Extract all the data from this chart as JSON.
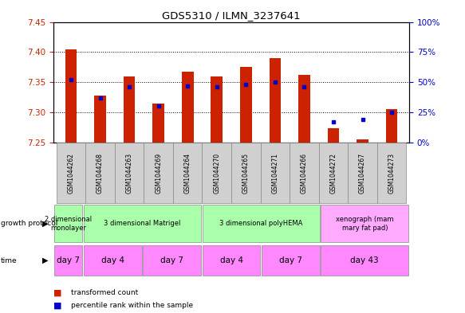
{
  "title": "GDS5310 / ILMN_3237641",
  "samples": [
    "GSM1044262",
    "GSM1044268",
    "GSM1044263",
    "GSM1044269",
    "GSM1044264",
    "GSM1044270",
    "GSM1044265",
    "GSM1044271",
    "GSM1044266",
    "GSM1044272",
    "GSM1044267",
    "GSM1044273"
  ],
  "transformed_counts": [
    7.405,
    7.328,
    7.36,
    7.314,
    7.367,
    7.36,
    7.375,
    7.39,
    7.362,
    7.273,
    7.255,
    7.305
  ],
  "percentile_ranks": [
    52,
    37,
    46,
    30,
    47,
    46,
    48,
    50,
    46,
    17,
    19,
    25
  ],
  "ylim": [
    7.25,
    7.45
  ],
  "yticks": [
    7.25,
    7.3,
    7.35,
    7.4,
    7.45
  ],
  "y2lim": [
    0,
    100
  ],
  "y2ticks": [
    0,
    25,
    50,
    75,
    100
  ],
  "y2ticklabels": [
    "0%",
    "25%",
    "50%",
    "75%",
    "100%"
  ],
  "bar_color": "#cc2200",
  "dot_color": "#0000cc",
  "bar_bottom": 7.25,
  "growth_protocol_groups": [
    {
      "label": "2 dimensional\nmonolayer",
      "start": 0,
      "end": 1,
      "color": "#aaffaa"
    },
    {
      "label": "3 dimensional Matrigel",
      "start": 1,
      "end": 5,
      "color": "#aaffaa"
    },
    {
      "label": "3 dimensional polyHEMA",
      "start": 5,
      "end": 9,
      "color": "#aaffaa"
    },
    {
      "label": "xenograph (mam\nmary fat pad)",
      "start": 9,
      "end": 12,
      "color": "#ffaaff"
    }
  ],
  "time_groups": [
    {
      "label": "day 7",
      "start": 0,
      "end": 1,
      "color": "#ff88ff"
    },
    {
      "label": "day 4",
      "start": 1,
      "end": 3,
      "color": "#ff88ff"
    },
    {
      "label": "day 7",
      "start": 3,
      "end": 5,
      "color": "#ff88ff"
    },
    {
      "label": "day 4",
      "start": 5,
      "end": 7,
      "color": "#ff88ff"
    },
    {
      "label": "day 7",
      "start": 7,
      "end": 9,
      "color": "#ff88ff"
    },
    {
      "label": "day 43",
      "start": 9,
      "end": 12,
      "color": "#ff88ff"
    }
  ],
  "sample_bg_color": "#d0d0d0",
  "grid_color": "#000000",
  "bg_color": "#ffffff",
  "tick_label_color_left": "#cc2200",
  "tick_label_color_right": "#0000cc",
  "bar_width": 0.4
}
